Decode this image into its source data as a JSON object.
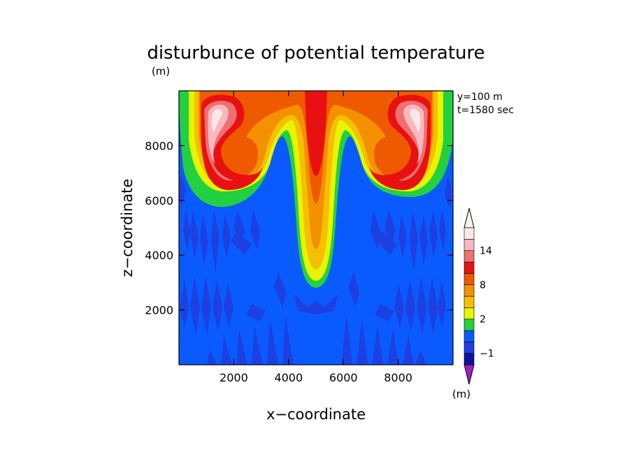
{
  "chart_data": {
    "type": "heatmap",
    "title": "disturbunce of potential temperature",
    "title_unit": "(m)",
    "xlabel": "x−coordinate",
    "ylabel": "z−coordinate",
    "xlim": [
      0,
      10000
    ],
    "ylim": [
      0,
      10000
    ],
    "x_ticks": [
      2000,
      4000,
      6000,
      8000
    ],
    "y_ticks": [
      2000,
      4000,
      6000,
      8000
    ],
    "x_tick_labels": [
      "2000",
      "4000",
      "6000",
      "8000"
    ],
    "y_tick_labels": [
      "2000",
      "4000",
      "6000",
      "8000"
    ],
    "annotations": [
      "y=100 m",
      "t=1580 sec"
    ],
    "colorbar": {
      "unit": "(m)",
      "levels": [
        -3,
        -2,
        -1,
        0,
        1,
        2,
        4,
        6,
        8,
        10,
        12,
        14,
        16
      ],
      "colors": [
        "#a020c0",
        "#1010a0",
        "#1f3fe0",
        "#0a5bff",
        "#22d040",
        "#e8f500",
        "#f5c000",
        "#f59000",
        "#ef5a00",
        "#e81010",
        "#f07070",
        "#f8b8c0",
        "#fce8e8",
        "#fff0f0"
      ],
      "tick_labels": [
        "−1",
        "2",
        "8",
        "14"
      ],
      "tick_values": [
        -1,
        2,
        8,
        14
      ]
    },
    "grid": false
  }
}
